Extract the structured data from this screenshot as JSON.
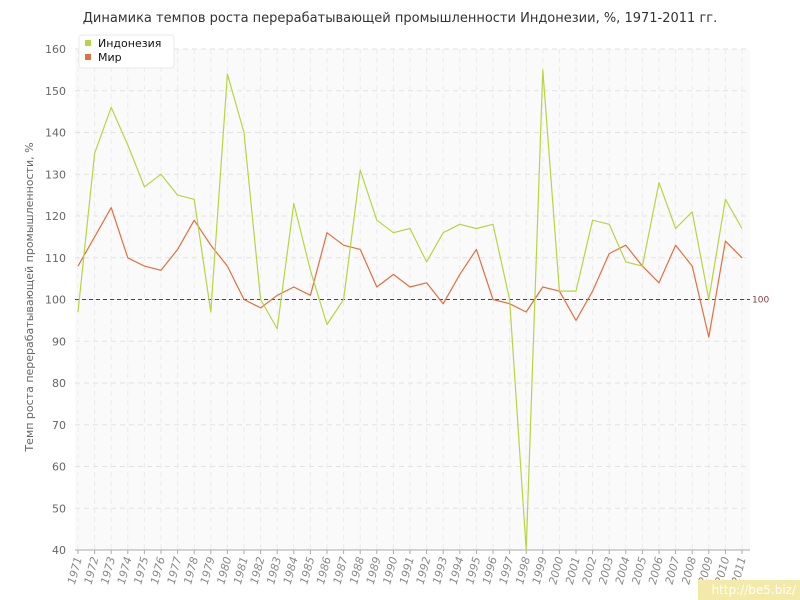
{
  "chart_data": {
    "type": "line",
    "title": "Динамика темпов роста перерабатывающей промышленности Индонезии, %, 1971-2011 гг.",
    "ylabel": "Темп роста перерабатывающей промышленности, %",
    "xlabel": "",
    "ylim": [
      40,
      160
    ],
    "yticks": [
      40,
      50,
      60,
      70,
      80,
      90,
      100,
      110,
      120,
      130,
      140,
      150,
      160
    ],
    "grid": true,
    "legend_position": "top-left",
    "categories": [
      "1971",
      "1972",
      "1973",
      "1974",
      "1975",
      "1976",
      "1977",
      "1978",
      "1979",
      "1980",
      "1981",
      "1982",
      "1983",
      "1984",
      "1985",
      "1986",
      "1987",
      "1988",
      "1989",
      "1990",
      "1991",
      "1992",
      "1993",
      "1994",
      "1995",
      "1996",
      "1997",
      "1998",
      "1999",
      "2000",
      "2001",
      "2002",
      "2003",
      "2004",
      "2005",
      "2006",
      "2007",
      "2008",
      "2009",
      "2010",
      "2011"
    ],
    "series": [
      {
        "name": "Индонезия",
        "color": "#b5d642",
        "values": [
          97,
          135,
          146,
          137,
          127,
          130,
          125,
          124,
          97,
          154,
          140,
          100,
          93,
          123,
          107,
          94,
          100,
          131,
          119,
          116,
          117,
          109,
          116,
          118,
          117,
          118,
          100,
          40,
          155,
          102,
          102,
          119,
          118,
          109,
          108,
          128,
          117,
          121,
          100,
          124,
          117
        ]
      },
      {
        "name": "Мир",
        "color": "#e07040",
        "values": [
          108,
          115,
          122,
          110,
          108,
          107,
          112,
          119,
          113,
          108,
          100,
          98,
          101,
          103,
          101,
          116,
          113,
          112,
          103,
          106,
          103,
          104,
          99,
          106,
          112,
          100,
          99,
          97,
          103,
          102,
          95,
          102,
          111,
          113,
          108,
          104,
          113,
          108,
          91,
          114,
          110
        ]
      }
    ],
    "reference_line": {
      "value": 100,
      "label": "100",
      "color": "#8b2a2a"
    }
  },
  "watermark": "http://be5.biz/"
}
